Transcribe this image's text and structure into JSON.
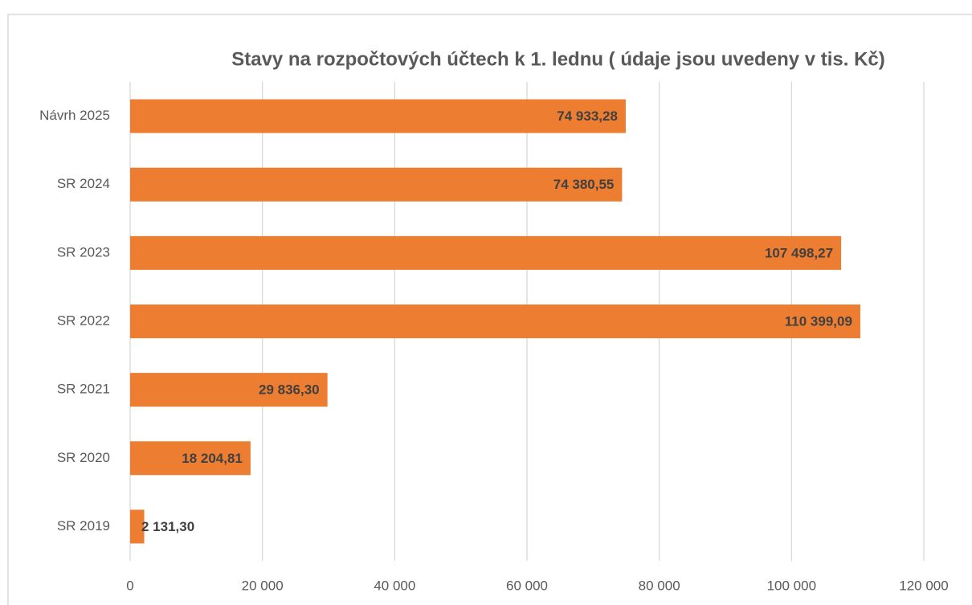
{
  "chart_data": {
    "type": "barh",
    "title": "Stavy na rozpočtových účtech k 1. lednu ( údaje jsou uvedeny v tis. Kč)",
    "categories": [
      "Návrh 2025",
      "SR 2024",
      "SR 2023",
      "SR 2022",
      "SR 2021",
      "SR 2020",
      "SR 2019"
    ],
    "values": [
      74933.28,
      74380.55,
      107498.27,
      110399.09,
      29836.3,
      18204.81,
      2131.3
    ],
    "value_labels": [
      "74 933,28",
      "74 380,55",
      "107 498,27",
      "110 399,09",
      "29 836,30",
      "18 204,81",
      "2 131,30"
    ],
    "color": "#ed7d31",
    "xlim": [
      0,
      120000
    ],
    "xticks": [
      0,
      {
        "value": 20000,
        "label": "20 000"
      },
      {
        "value": 40000,
        "label": "40 000"
      },
      {
        "value": 60000,
        "label": "60 000"
      },
      {
        "value": 80000,
        "label": "80 000"
      },
      {
        "value": 100000,
        "label": "100 000"
      },
      {
        "value": 120000,
        "label": "120 000"
      }
    ],
    "grid": true
  }
}
